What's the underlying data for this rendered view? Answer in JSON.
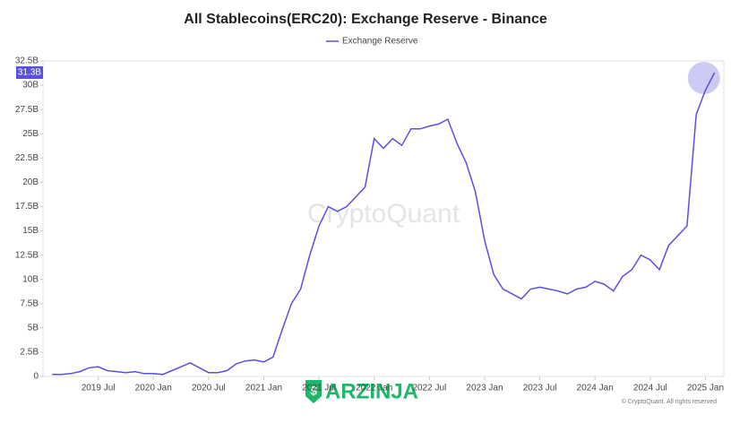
{
  "chart_data": {
    "type": "line",
    "title": "All Stablecoins(ERC20): Exchange Reserve - Binance",
    "x": [
      "2019-02",
      "2019-03",
      "2019-04",
      "2019-05",
      "2019-06",
      "2019-07",
      "2019-08",
      "2019-09",
      "2019-10",
      "2019-11",
      "2019-12",
      "2020-01",
      "2020-02",
      "2020-03",
      "2020-04",
      "2020-05",
      "2020-06",
      "2020-07",
      "2020-08",
      "2020-09",
      "2020-10",
      "2020-11",
      "2020-12",
      "2021-01",
      "2021-02",
      "2021-03",
      "2021-04",
      "2021-05",
      "2021-06",
      "2021-07",
      "2021-08",
      "2021-09",
      "2021-10",
      "2021-11",
      "2021-12",
      "2022-01",
      "2022-02",
      "2022-03",
      "2022-04",
      "2022-05",
      "2022-06",
      "2022-07",
      "2022-08",
      "2022-09",
      "2022-10",
      "2022-11",
      "2022-12",
      "2023-01",
      "2023-02",
      "2023-03",
      "2023-04",
      "2023-05",
      "2023-06",
      "2023-07",
      "2023-08",
      "2023-09",
      "2023-10",
      "2023-11",
      "2023-12",
      "2024-01",
      "2024-02",
      "2024-03",
      "2024-04",
      "2024-05",
      "2024-06",
      "2024-07",
      "2024-08",
      "2024-09",
      "2024-10",
      "2024-11",
      "2024-12",
      "2025-01",
      "2025-02"
    ],
    "series": [
      {
        "name": "Exchange Reserve",
        "color": "#5b4fe0",
        "values": [
          0.2,
          0.2,
          0.3,
          0.5,
          0.9,
          1.0,
          0.6,
          0.5,
          0.4,
          0.5,
          0.3,
          0.3,
          0.2,
          0.6,
          1.0,
          1.4,
          0.9,
          0.4,
          0.4,
          0.6,
          1.3,
          1.6,
          1.7,
          1.5,
          2.0,
          4.8,
          7.5,
          9.0,
          12.5,
          15.5,
          17.5,
          17.0,
          17.5,
          18.5,
          19.5,
          24.5,
          23.5,
          24.5,
          23.8,
          25.5,
          25.5,
          25.8,
          26.0,
          26.5,
          24.0,
          22.0,
          19.0,
          14.0,
          10.5,
          9.0,
          8.5,
          8.0,
          9.0,
          9.2,
          9.0,
          8.8,
          8.5,
          9.0,
          9.2,
          9.8,
          9.5,
          8.8,
          10.3,
          11.0,
          12.5,
          12.0,
          11.0,
          13.5,
          14.5,
          15.5,
          27.0,
          29.5,
          31.3
        ]
      }
    ],
    "xlim": [
      "2019-01",
      "2025-03"
    ],
    "xticks": [
      {
        "value": "2019-07",
        "label": "2019 Jul"
      },
      {
        "value": "2020-01",
        "label": "2020 Jan"
      },
      {
        "value": "2020-07",
        "label": "2020 Jul"
      },
      {
        "value": "2021-01",
        "label": "2021 Jan"
      },
      {
        "value": "2021-07",
        "label": "2021 Jul"
      },
      {
        "value": "2022-01",
        "label": "2022 Jan"
      },
      {
        "value": "2022-07",
        "label": "2022 Jul"
      },
      {
        "value": "2023-01",
        "label": "2023 Jan"
      },
      {
        "value": "2023-07",
        "label": "2023 Jul"
      },
      {
        "value": "2024-01",
        "label": "2024 Jan"
      },
      {
        "value": "2024-07",
        "label": "2024 Jul"
      },
      {
        "value": "2025-01",
        "label": "2025 Jan"
      }
    ],
    "ylim": [
      0,
      32.5
    ],
    "yticks": [
      0,
      {
        "value": 2.5,
        "label": "2.5B"
      },
      {
        "value": 5,
        "label": "5B"
      },
      {
        "value": 7.5,
        "label": "7.5B"
      },
      {
        "value": 10,
        "label": "10B"
      },
      {
        "value": 12.5,
        "label": "12.5B"
      },
      {
        "value": 15,
        "label": "15B"
      },
      {
        "value": 17.5,
        "label": "17.5B"
      },
      {
        "value": 20,
        "label": "20B"
      },
      {
        "value": 22.5,
        "label": "22.5B"
      },
      {
        "value": 25,
        "label": "25B"
      },
      {
        "value": 27.5,
        "label": "27.5B"
      },
      {
        "value": 30,
        "label": "30B"
      },
      {
        "value": 32.5,
        "label": "32.5B"
      }
    ],
    "last_value_label": "31.3B",
    "watermark": "CryptoQuant",
    "copyright": "© CryptoQuant. All rights reserved",
    "logo_text": "ARZINJA"
  }
}
